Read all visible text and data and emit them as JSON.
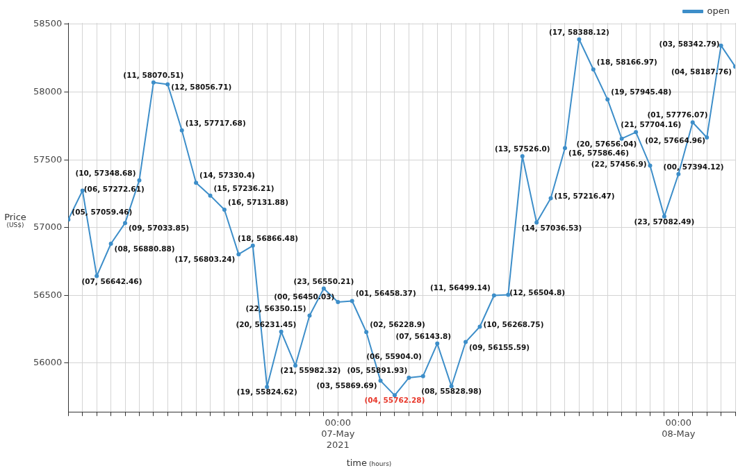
{
  "chart_data": {
    "type": "line",
    "xlabel": "time (hours)",
    "ylabel": "Price (US$)",
    "legend": "top right",
    "grid": true,
    "marker": "circle",
    "line_style": "solid",
    "ylim": [
      55640,
      58510
    ],
    "yticks": [
      56000,
      56500,
      57000,
      57500,
      58000,
      58500
    ],
    "xlim": [
      "2021-05-06T05:00",
      "2021-05-08T04:00"
    ],
    "xticks": [
      {
        "value": "2021-05-06T05:00",
        "label": null
      },
      {
        "value": "2021-05-06T06:00",
        "label": null
      },
      {
        "value": "2021-05-06T07:00",
        "label": null
      },
      {
        "value": "2021-05-06T08:00",
        "label": null
      },
      {
        "value": "2021-05-06T09:00",
        "label": null
      },
      {
        "value": "2021-05-06T10:00",
        "label": null
      },
      {
        "value": "2021-05-06T11:00",
        "label": null
      },
      {
        "value": "2021-05-06T12:00",
        "label": null
      },
      {
        "value": "2021-05-06T13:00",
        "label": null
      },
      {
        "value": "2021-05-06T14:00",
        "label": null
      },
      {
        "value": "2021-05-06T15:00",
        "label": null
      },
      {
        "value": "2021-05-06T16:00",
        "label": null
      },
      {
        "value": "2021-05-06T17:00",
        "label": null
      },
      {
        "value": "2021-05-06T18:00",
        "label": null
      },
      {
        "value": "2021-05-06T19:00",
        "label": null
      },
      {
        "value": "2021-05-06T20:00",
        "label": null
      },
      {
        "value": "2021-05-06T21:00",
        "label": null
      },
      {
        "value": "2021-05-06T22:00",
        "label": null
      },
      {
        "value": "2021-05-06T23:00",
        "label": null
      },
      {
        "value": "2021-05-07T00:00",
        "label": "00:00\n07-May\n2021"
      },
      {
        "value": "2021-05-07T01:00",
        "label": null
      },
      {
        "value": "2021-05-07T02:00",
        "label": null
      },
      {
        "value": "2021-05-07T03:00",
        "label": null
      },
      {
        "value": "2021-05-07T04:00",
        "label": null
      },
      {
        "value": "2021-05-07T05:00",
        "label": null
      },
      {
        "value": "2021-05-07T06:00",
        "label": null
      },
      {
        "value": "2021-05-07T07:00",
        "label": null
      },
      {
        "value": "2021-05-07T08:00",
        "label": null
      },
      {
        "value": "2021-05-07T09:00",
        "label": null
      },
      {
        "value": "2021-05-07T10:00",
        "label": null
      },
      {
        "value": "2021-05-07T11:00",
        "label": null
      },
      {
        "value": "2021-05-07T12:00",
        "label": null
      },
      {
        "value": "2021-05-07T13:00",
        "label": null
      },
      {
        "value": "2021-05-07T14:00",
        "label": null
      },
      {
        "value": "2021-05-07T15:00",
        "label": null
      },
      {
        "value": "2021-05-07T16:00",
        "label": null
      },
      {
        "value": "2021-05-07T17:00",
        "label": null
      },
      {
        "value": "2021-05-07T18:00",
        "label": null
      },
      {
        "value": "2021-05-07T19:00",
        "label": null
      },
      {
        "value": "2021-05-07T20:00",
        "label": null
      },
      {
        "value": "2021-05-07T21:00",
        "label": null
      },
      {
        "value": "2021-05-07T22:00",
        "label": null
      },
      {
        "value": "2021-05-07T23:00",
        "label": null
      },
      {
        "value": "2021-05-08T00:00",
        "label": "00:00\n08-May"
      },
      {
        "value": "2021-05-08T01:00",
        "label": null
      },
      {
        "value": "2021-05-08T02:00",
        "label": null
      },
      {
        "value": "2021-05-08T03:00",
        "label": null
      },
      {
        "value": "2021-05-08T04:00",
        "label": null
      }
    ],
    "x": [
      "2021-05-06T05:00",
      "2021-05-06T06:00",
      "2021-05-06T07:00",
      "2021-05-06T08:00",
      "2021-05-06T09:00",
      "2021-05-06T10:00",
      "2021-05-06T11:00",
      "2021-05-06T12:00",
      "2021-05-06T13:00",
      "2021-05-06T14:00",
      "2021-05-06T15:00",
      "2021-05-06T16:00",
      "2021-05-06T17:00",
      "2021-05-06T18:00",
      "2021-05-06T19:00",
      "2021-05-06T20:00",
      "2021-05-06T21:00",
      "2021-05-06T22:00",
      "2021-05-06T23:00",
      "2021-05-07T00:00",
      "2021-05-07T01:00",
      "2021-05-07T02:00",
      "2021-05-07T03:00",
      "2021-05-07T04:00",
      "2021-05-07T05:00",
      "2021-05-07T06:00",
      "2021-05-07T07:00",
      "2021-05-07T08:00",
      "2021-05-07T09:00",
      "2021-05-07T10:00",
      "2021-05-07T11:00",
      "2021-05-07T12:00",
      "2021-05-07T13:00",
      "2021-05-07T14:00",
      "2021-05-07T15:00",
      "2021-05-07T16:00",
      "2021-05-07T17:00",
      "2021-05-07T18:00",
      "2021-05-07T19:00",
      "2021-05-07T20:00",
      "2021-05-07T21:00",
      "2021-05-07T22:00",
      "2021-05-07T23:00",
      "2021-05-08T00:00",
      "2021-05-08T01:00",
      "2021-05-08T02:00",
      "2021-05-08T03:00",
      "2021-05-08T04:00"
    ],
    "series": [
      {
        "name": "open",
        "color": "#3d8ec9",
        "values": [
          57059.46,
          57272.61,
          56642.46,
          56880.88,
          57033.85,
          57348.68,
          58070.51,
          58056.71,
          57717.68,
          57330.4,
          57236.21,
          57131.88,
          56803.24,
          56866.48,
          55824.62,
          56231.45,
          55982.32,
          56350.15,
          56550.21,
          56450.03,
          56458.37,
          56228.9,
          55869.69,
          55762.28,
          55891.93,
          55904.0,
          56143.8,
          55828.98,
          56155.59,
          56268.75,
          56499.14,
          56504.8,
          57526.0,
          57036.53,
          57216.47,
          57586.46,
          58388.12,
          58166.97,
          57945.48,
          57656.04,
          57704.16,
          57456.9,
          57082.49,
          57394.12,
          57776.07,
          57664.96,
          58342.79,
          58187.76
        ],
        "value_labels": [
          "(05, 57059.46)",
          "(06, 57272.61)",
          "(07, 56642.46)",
          "(08, 56880.88)",
          "(09, 57033.85)",
          "(10, 57348.68)",
          "(11, 58070.51)",
          "(12, 58056.71)",
          "(13, 57717.68)",
          "(14, 57330.4)",
          "(15, 57236.21)",
          "(16, 57131.88)",
          "(17, 56803.24)",
          "(18, 56866.48)",
          "(19, 55824.62)",
          "(20, 56231.45)",
          "(21, 55982.32)",
          "(22, 56350.15)",
          "(23, 56550.21)",
          "(00, 56450.03)",
          "(01, 56458.37)",
          "(02, 56228.9)",
          "(03, 55869.69)",
          "(04, 55762.28)",
          "(05, 55891.93)",
          "(06, 55904.0)",
          "(07, 56143.8)",
          "(08, 55828.98)",
          "(09, 56155.59)",
          "(10, 56268.75)",
          "(11, 56499.14)",
          "(12, 56504.8)",
          "(13, 57526.0)",
          "(14, 57036.53)",
          "(15, 57216.47)",
          "(16, 57586.46)",
          "(17, 58388.12)",
          "(18, 58166.97)",
          "(19, 57945.48)",
          "(20, 57656.04)",
          "(21, 57704.16)",
          "(22, 57456.9)",
          "(23, 57082.49)",
          "(00, 57394.12)",
          "(01, 57776.07)",
          "(02, 57664.96)",
          "(03, 58342.79)",
          "(04, 58187.76)"
        ]
      }
    ]
  }
}
